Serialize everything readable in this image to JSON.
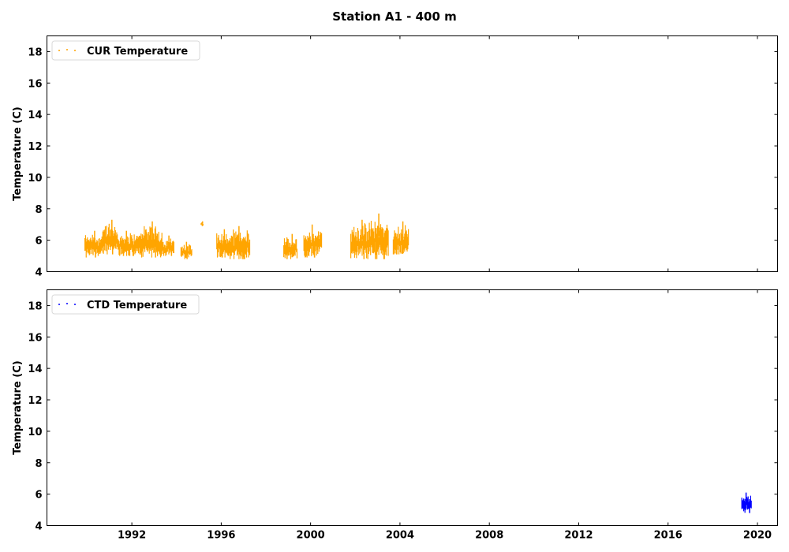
{
  "chart_data": {
    "type": "scatter",
    "title": "Station A1 - 400 m",
    "panels": [
      {
        "legend_label": "CUR Temperature",
        "legend_position": "upper-left",
        "color": "#FFA500",
        "ylabel": "Temperature (C)",
        "ylim": [
          4,
          19
        ],
        "yticks": [
          4,
          6,
          8,
          10,
          12,
          14,
          16,
          18
        ],
        "segments": [
          {
            "start": 1989.9,
            "end": 1990.7,
            "ymin": 4.9,
            "ymax": 6.6
          },
          {
            "start": 1990.7,
            "end": 1991.4,
            "ymin": 5.1,
            "ymax": 7.3
          },
          {
            "start": 1991.4,
            "end": 1992.3,
            "ymin": 5.0,
            "ymax": 6.6
          },
          {
            "start": 1992.3,
            "end": 1993.4,
            "ymin": 4.9,
            "ymax": 7.2
          },
          {
            "start": 1993.4,
            "end": 1993.9,
            "ymin": 5.0,
            "ymax": 6.3
          },
          {
            "start": 1994.2,
            "end": 1994.7,
            "ymin": 4.8,
            "ymax": 5.9
          },
          {
            "start": 1995.1,
            "end": 1995.2,
            "ymin": 6.9,
            "ymax": 7.2
          },
          {
            "start": 1995.8,
            "end": 1996.4,
            "ymin": 4.9,
            "ymax": 6.7
          },
          {
            "start": 1996.4,
            "end": 1997.3,
            "ymin": 4.8,
            "ymax": 6.9
          },
          {
            "start": 1998.8,
            "end": 1999.4,
            "ymin": 4.8,
            "ymax": 6.4
          },
          {
            "start": 1999.7,
            "end": 2000.5,
            "ymin": 4.9,
            "ymax": 7.0
          },
          {
            "start": 2001.8,
            "end": 2002.6,
            "ymin": 4.8,
            "ymax": 7.3
          },
          {
            "start": 2002.6,
            "end": 2003.5,
            "ymin": 4.8,
            "ymax": 7.7
          },
          {
            "start": 2003.7,
            "end": 2004.4,
            "ymin": 5.1,
            "ymax": 7.2
          }
        ]
      },
      {
        "legend_label": "CTD Temperature",
        "legend_position": "upper-left",
        "color": "#0000FF",
        "ylabel": "Temperature (C)",
        "ylim": [
          4,
          19
        ],
        "yticks": [
          4,
          6,
          8,
          10,
          12,
          14,
          16,
          18
        ],
        "segments": [
          {
            "start": 2019.3,
            "end": 2019.75,
            "ymin": 4.8,
            "ymax": 6.1
          }
        ]
      }
    ],
    "xlim": [
      1988.2,
      2020.9
    ],
    "xticks": [
      "1992",
      "1996",
      "2000",
      "2004",
      "2008",
      "2012",
      "2016",
      "2020"
    ],
    "xtick_values": [
      1992,
      1996,
      2000,
      2004,
      2008,
      2012,
      2016,
      2020
    ],
    "grid": false
  }
}
